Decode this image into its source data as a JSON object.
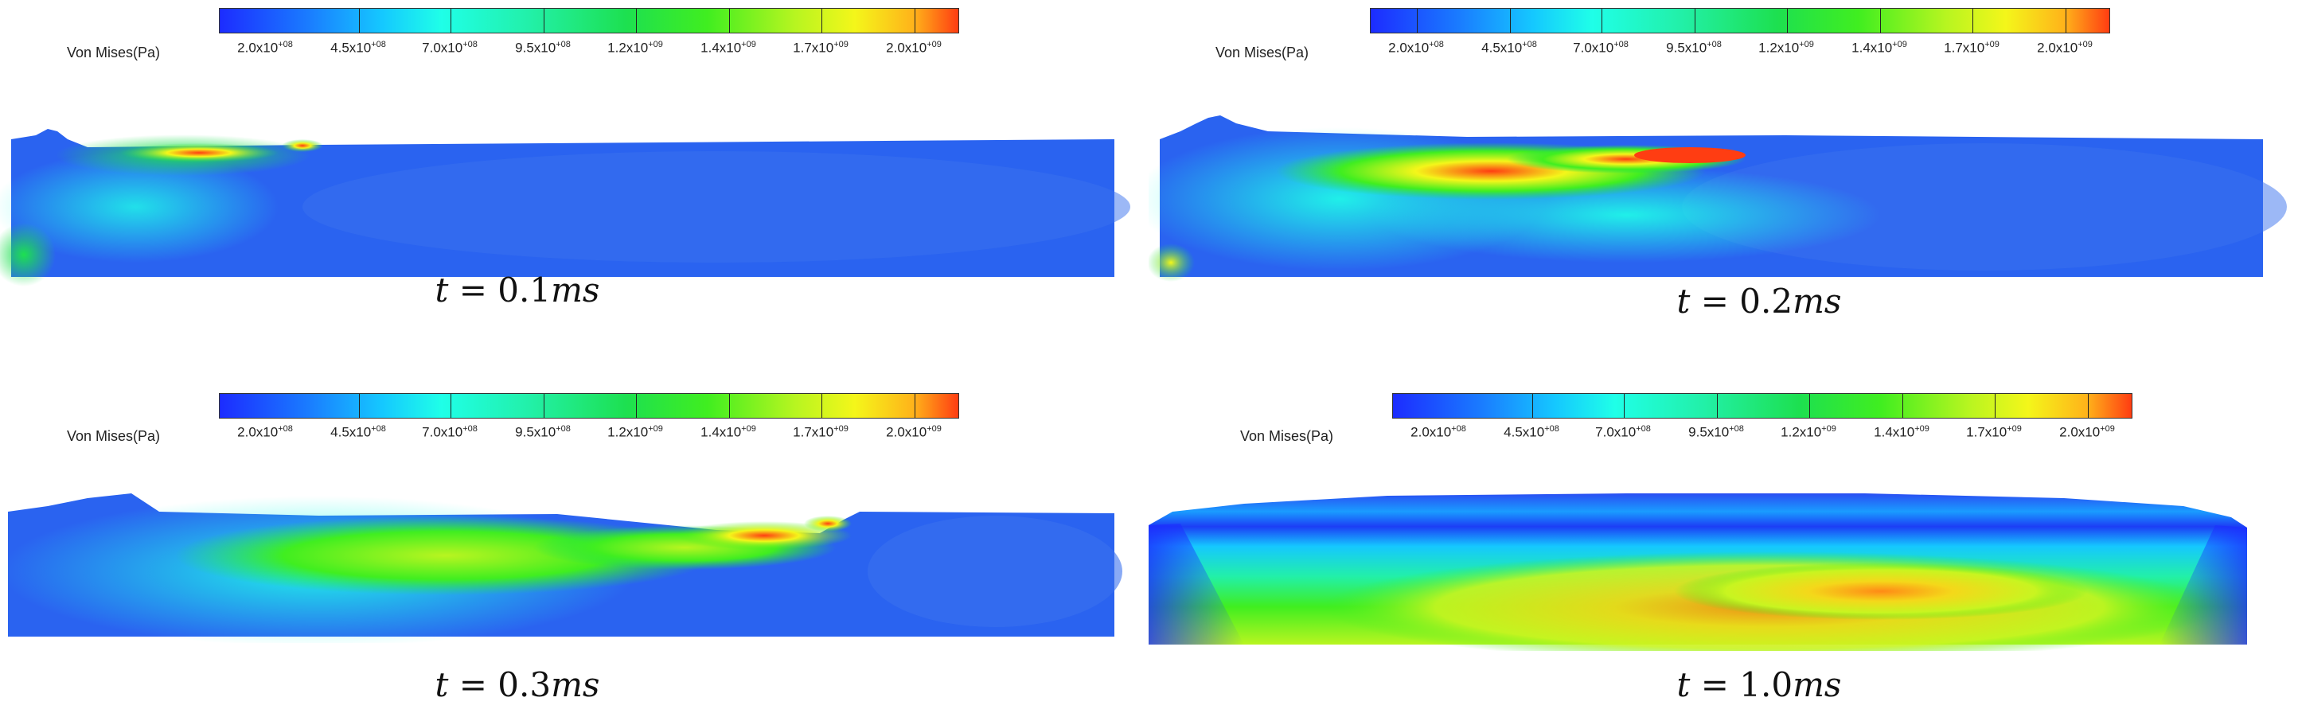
{
  "legend_title": "Von Mises(Pa)",
  "tick_labels": [
    {
      "m": "2.0x10",
      "e": "+08"
    },
    {
      "m": "4.5x10",
      "e": "+08"
    },
    {
      "m": "7.0x10",
      "e": "+08"
    },
    {
      "m": "9.5x10",
      "e": "+08"
    },
    {
      "m": "1.2x10",
      "e": "+09"
    },
    {
      "m": "1.4x10",
      "e": "+09"
    },
    {
      "m": "1.7x10",
      "e": "+09"
    },
    {
      "m": "2.0x10",
      "e": "+09"
    }
  ],
  "panels": [
    {
      "t_label": "t",
      "eq": " = ",
      "value": "0.1",
      "unit": "ms"
    },
    {
      "t_label": "t",
      "eq": " = ",
      "value": "0.2",
      "unit": "ms"
    },
    {
      "t_label": "t",
      "eq": " = ",
      "value": "0.3",
      "unit": "ms"
    },
    {
      "t_label": "t",
      "eq": " = ",
      "value": "1.0",
      "unit": "ms"
    }
  ],
  "colormap": [
    "#1c2cff",
    "#15c8ff",
    "#1fffe8",
    "#1de050",
    "#b8f520",
    "#f4f61a",
    "#ff3d12"
  ]
}
